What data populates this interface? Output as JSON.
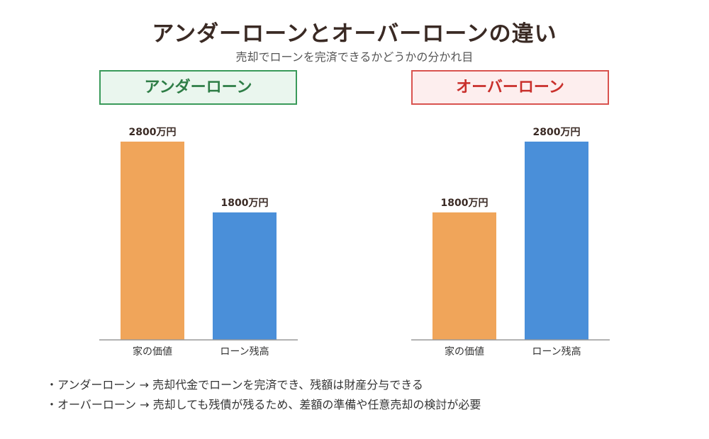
{
  "title": "アンダーローンとオーバーローンの違い",
  "subtitle": "売却でローンを完済できるかどうかの分かれ目",
  "chart_data": [
    {
      "type": "bar",
      "title": "アンダーローン",
      "categories": [
        "家の価値",
        "ローン残高"
      ],
      "values": [
        2800,
        1800
      ],
      "value_labels": [
        "2800万円",
        "1800万円"
      ],
      "colors": [
        "#f0a55a",
        "#4a8fd9"
      ],
      "ylim": [
        0,
        2800
      ],
      "header_color": "#2e7d46"
    },
    {
      "type": "bar",
      "title": "オーバーローン",
      "categories": [
        "家の価値",
        "ローン残高"
      ],
      "values": [
        1800,
        2800
      ],
      "value_labels": [
        "1800万円",
        "2800万円"
      ],
      "colors": [
        "#f0a55a",
        "#4a8fd9"
      ],
      "ylim": [
        0,
        2800
      ],
      "header_color": "#c9302c"
    }
  ],
  "notes": [
    "・アンダーローン → 売却代金でローンを完済でき、残額は財産分与できる",
    "・オーバーローン → 売却しても残債が残るため、差額の準備や任意売却の検討が必要"
  ]
}
